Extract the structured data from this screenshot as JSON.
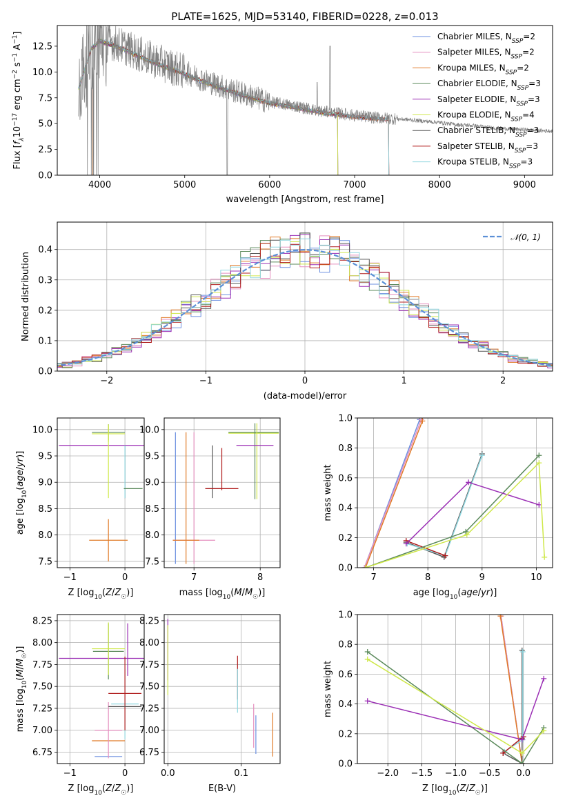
{
  "colors": {
    "Chabrier MILES": "#6b8fe0",
    "Salpeter MILES": "#e58fbf",
    "Kroupa MILES": "#e07b28",
    "Chabrier ELODIE": "#5b8a5b",
    "Salpeter ELODIE": "#9b2fb5",
    "Kroupa ELODIE": "#cfe84a",
    "Chabrier STELIB": "#555555",
    "Salpeter STELIB": "#b01c1c",
    "Kroupa STELIB": "#8fd6df",
    "data": "#808080",
    "normal": "#5b8fd6"
  },
  "chart_data": [
    {
      "type": "line",
      "title": "PLATE=1625, MJD=53140, FIBERID=0228, z=0.013",
      "xlabel": "wavelength [Angstrom, rest frame]",
      "ylabel": "Flux [f_λ10^-17 erg cm^-2 s^-1 A^-1]",
      "xlim": [
        3500,
        9330
      ],
      "ylim": [
        0,
        14.5
      ],
      "xticks": [
        "4000",
        "5000",
        "6000",
        "7000",
        "8000",
        "9000"
      ],
      "yticks": [
        "0.0",
        "2.5",
        "5.0",
        "7.5",
        "10.0",
        "12.5"
      ],
      "legend_position": "top-right",
      "legend": [
        {
          "name": "Chabrier MILES",
          "nssp": "2"
        },
        {
          "name": "Salpeter MILES",
          "nssp": "2"
        },
        {
          "name": "Kroupa MILES",
          "nssp": "2"
        },
        {
          "name": "Chabrier ELODIE",
          "nssp": "3"
        },
        {
          "name": "Salpeter ELODIE",
          "nssp": "3"
        },
        {
          "name": "Kroupa ELODIE",
          "nssp": "4"
        },
        {
          "name": "Chabrier STELIB",
          "nssp": "3"
        },
        {
          "name": "Salpeter STELIB",
          "nssp": "3"
        },
        {
          "name": "Kroupa STELIB",
          "nssp": "3"
        }
      ],
      "data_envelope": {
        "x": [
          3750,
          3900,
          4000,
          4100,
          4200,
          4300,
          4500,
          4800,
          5000,
          5200,
          5500,
          5800,
          6000,
          6300,
          6600,
          6800,
          7000,
          7200,
          7400,
          7600,
          7800,
          8000,
          8200,
          8400,
          8600,
          8800,
          9000,
          9200
        ],
        "y": [
          8.5,
          12.5,
          13.3,
          13.0,
          12.7,
          12.4,
          11.6,
          10.6,
          10.0,
          9.3,
          8.4,
          7.6,
          7.1,
          6.7,
          6.2,
          6.0,
          5.8,
          5.6,
          5.5,
          5.4,
          5.25,
          5.1,
          4.9,
          4.8,
          4.6,
          4.5,
          4.4,
          4.3
        ]
      },
      "models": {
        "MILES_end": 7400,
        "ELODIE_end": 6800,
        "STELIB_end": 7400,
        "start": 3750,
        "MILES_start": 3920
      }
    },
    {
      "type": "line",
      "xlabel": "(data-model)/error",
      "ylabel": "Normed distribution",
      "xlim": [
        -2.5,
        2.5
      ],
      "ylim": [
        0,
        0.49
      ],
      "xticks": [
        "−2",
        "−1",
        "0",
        "1",
        "2"
      ],
      "yticks": [
        "0.0",
        "0.1",
        "0.2",
        "0.3",
        "0.4"
      ],
      "grid": true,
      "legend_position": "top-right",
      "normal_label": "𝒩(0, 1)",
      "bin_width": 0.1
    },
    {
      "type": "scatter",
      "xlabel": "Z [log10(Z/Z☉)]",
      "ylabel": "age  [log10(age/yr)]",
      "xlim": [
        -1.23,
        0.35
      ],
      "ylim": [
        7.38,
        10.22
      ],
      "xticks": [
        "−1",
        "0"
      ],
      "yticks": [
        "7.5",
        "8.0",
        "8.5",
        "9.0",
        "9.5",
        "10.0"
      ],
      "grid": true,
      "points": [
        {
          "model": "Salpeter ELODIE",
          "x": -0.35,
          "y": 9.7,
          "xerr": 0.85,
          "yerr": 0.0
        },
        {
          "model": "Chabrier ELODIE",
          "x": -0.3,
          "y": 9.95,
          "xerr": 0.3,
          "yerr": 0.15
        },
        {
          "model": "Kroupa ELODIE",
          "x": -0.3,
          "y": 9.92,
          "xerr": 0.3,
          "yerr": 0.15
        },
        {
          "model": "Kroupa ELODIE",
          "x": -0.3,
          "y": 9.4,
          "xerr": 0.0,
          "yerr": 0.7
        },
        {
          "model": "Kroupa MILES",
          "x": -0.3,
          "y": 7.9,
          "xerr": 0.35,
          "yerr": 0.4
        },
        {
          "model": "Chabrier STELIB",
          "x": 0.0,
          "y": 9.2,
          "xerr": 0.0,
          "yerr": 0.5
        },
        {
          "model": "Kroupa STELIB",
          "x": 0.0,
          "y": 9.2,
          "xerr": 0.0,
          "yerr": 0.5
        },
        {
          "model": "Chabrier ELODIE",
          "x": 0.15,
          "y": 8.88,
          "xerr": 0.17,
          "yerr": 0.0
        }
      ]
    },
    {
      "type": "scatter",
      "xlabel": "mass [log10(M/M☉)]",
      "xlim": [
        6.55,
        8.3
      ],
      "ylim": [
        7.38,
        10.22
      ],
      "xticks": [
        "7",
        "8"
      ],
      "yticks": [
        "7.5",
        "8.0",
        "8.5",
        "9.0",
        "9.5",
        "10.0"
      ],
      "grid": true,
      "points": [
        {
          "model": "Chabrier MILES",
          "x": 6.72,
          "y": 8.7,
          "xerr": 0.0,
          "yerr": 1.25
        },
        {
          "model": "Kroupa MILES",
          "x": 6.88,
          "y": 8.7,
          "xerr": 0.0,
          "yerr": 1.25
        },
        {
          "model": "Salpeter MILES",
          "x": 7.0,
          "y": 8.7,
          "xerr": 0.0,
          "yerr": 1.25
        },
        {
          "model": "Salpeter MILES",
          "x": 7.0,
          "y": 7.9,
          "xerr": 0.32,
          "yerr": 0.0
        },
        {
          "model": "Kroupa MILES",
          "x": 6.88,
          "y": 7.9,
          "xerr": 0.2,
          "yerr": 0.0
        },
        {
          "model": "Chabrier STELIB",
          "x": 7.28,
          "y": 9.2,
          "xerr": 0.0,
          "yerr": 0.5
        },
        {
          "model": "Kroupa STELIB",
          "x": 7.3,
          "y": 8.88,
          "xerr": 0.1,
          "yerr": 0.0
        },
        {
          "model": "Salpeter STELIB",
          "x": 7.42,
          "y": 8.88,
          "xerr": 0.25,
          "yerr": 0.0
        },
        {
          "model": "Salpeter STELIB",
          "x": 7.42,
          "y": 9.25,
          "xerr": 0.0,
          "yerr": 0.4
        },
        {
          "model": "Chabrier ELODIE",
          "x": 7.9,
          "y": 9.95,
          "xerr": 0.38,
          "yerr": 0.0
        },
        {
          "model": "Kroupa ELODIE",
          "x": 7.9,
          "y": 9.93,
          "xerr": 0.38,
          "yerr": 0.0
        },
        {
          "model": "Kroupa ELODIE",
          "x": 7.95,
          "y": 9.4,
          "xerr": 0.0,
          "yerr": 0.72
        },
        {
          "model": "Chabrier ELODIE",
          "x": 7.92,
          "y": 9.4,
          "xerr": 0.0,
          "yerr": 0.72
        },
        {
          "model": "Salpeter ELODIE",
          "x": 7.92,
          "y": 9.7,
          "xerr": 0.28,
          "yerr": 0.0
        }
      ]
    },
    {
      "type": "line",
      "xlabel": "age  [log10(age/yr)]",
      "ylabel": "mass weight",
      "xlim": [
        6.7,
        10.3
      ],
      "ylim": [
        0,
        1
      ],
      "xticks": [
        "7",
        "8",
        "9",
        "10"
      ],
      "yticks": [
        "0.0",
        "0.2",
        "0.4",
        "0.6",
        "0.8",
        "1.0"
      ],
      "grid": true,
      "series": [
        {
          "name": "Chabrier MILES",
          "x": [
            6.83,
            7.85
          ],
          "y": [
            0.0,
            0.99
          ]
        },
        {
          "name": "Salpeter MILES",
          "x": [
            6.83,
            7.88
          ],
          "y": [
            0.0,
            0.99
          ]
        },
        {
          "name": "Kroupa MILES",
          "x": [
            6.85,
            7.9
          ],
          "y": [
            0.0,
            0.98
          ]
        },
        {
          "name": "Chabrier STELIB",
          "x": [
            7.6,
            8.3,
            9.0
          ],
          "y": [
            0.17,
            0.07,
            0.76
          ]
        },
        {
          "name": "Kroupa STELIB",
          "x": [
            7.62,
            8.32,
            9.0
          ],
          "y": [
            0.16,
            0.08,
            0.75
          ]
        },
        {
          "name": "Salpeter STELIB",
          "x": [
            7.6,
            8.32
          ],
          "y": [
            0.18,
            0.08
          ]
        },
        {
          "name": "Chabrier ELODIE",
          "x": [
            6.85,
            8.7,
            10.05
          ],
          "y": [
            0.0,
            0.24,
            0.75
          ]
        },
        {
          "name": "Salpeter ELODIE",
          "x": [
            7.6,
            8.75,
            10.05
          ],
          "y": [
            0.16,
            0.57,
            0.42
          ]
        },
        {
          "name": "Kroupa ELODIE",
          "x": [
            6.85,
            8.72,
            10.05,
            10.15
          ],
          "y": [
            0.0,
            0.22,
            0.7,
            0.07
          ]
        }
      ]
    },
    {
      "type": "scatter",
      "xlabel": "Z [log10(Z/Z☉)]",
      "ylabel": "mass [log10(M/M☉)]",
      "xlim": [
        -1.23,
        0.35
      ],
      "ylim": [
        6.62,
        8.32
      ],
      "xticks": [
        "−1",
        "0"
      ],
      "yticks": [
        "6.75",
        "7.00",
        "7.25",
        "7.50",
        "7.75",
        "8.00",
        "8.25"
      ],
      "grid": true,
      "points": [
        {
          "model": "Salpeter ELODIE",
          "x": -0.35,
          "y": 7.82,
          "xerr": 0.85,
          "yerr": 0.0
        },
        {
          "model": "Chabrier ELODIE",
          "x": -0.3,
          "y": 7.9,
          "xerr": 0.28,
          "yerr": 0.32
        },
        {
          "model": "Kroupa ELODIE",
          "x": -0.3,
          "y": 7.93,
          "xerr": 0.3,
          "yerr": 0.3
        },
        {
          "model": "Chabrier MILES",
          "x": -0.3,
          "y": 6.7,
          "xerr": 0.25,
          "yerr": 0.0
        },
        {
          "model": "Kroupa MILES",
          "x": -0.3,
          "y": 6.88,
          "xerr": 0.3,
          "yerr": 0.0
        },
        {
          "model": "Salpeter MILES",
          "x": -0.3,
          "y": 7.0,
          "xerr": 0.25,
          "yerr": 0.32
        },
        {
          "model": "Kroupa STELIB",
          "x": 0.0,
          "y": 7.3,
          "xerr": 0.25,
          "yerr": 0.4
        },
        {
          "model": "Salpeter STELIB",
          "x": 0.0,
          "y": 7.42,
          "xerr": 0.3,
          "yerr": 0.42
        },
        {
          "model": "Chabrier STELIB",
          "x": 0.0,
          "y": 7.27,
          "xerr": 0.3,
          "yerr": 0.0
        },
        {
          "model": "Salpeter ELODIE",
          "x": 0.05,
          "y": 7.92,
          "xerr": 0.0,
          "yerr": 0.3
        }
      ]
    },
    {
      "type": "scatter",
      "xlabel": "E(B-V)",
      "xlim": [
        -0.005,
        0.153
      ],
      "ylim": [
        6.62,
        8.32
      ],
      "xticks": [
        "0.0",
        "0.1"
      ],
      "yticks": [
        "6.75",
        "7.00",
        "7.25",
        "7.50",
        "7.75",
        "8.00",
        "8.25"
      ],
      "grid": true,
      "points": [
        {
          "model": "Salpeter ELODIE",
          "x": 0.0,
          "y": 7.92,
          "xerr": 0.0,
          "yerr": 0.35
        },
        {
          "model": "Kroupa ELODIE",
          "x": 0.0,
          "y": 7.8,
          "xerr": 0.0,
          "yerr": 0.4
        },
        {
          "model": "Salpeter STELIB",
          "x": 0.095,
          "y": 7.6,
          "xerr": 0.0,
          "yerr": 0.25
        },
        {
          "model": "Kroupa STELIB",
          "x": 0.095,
          "y": 7.45,
          "xerr": 0.0,
          "yerr": 0.25
        },
        {
          "model": "Salpeter MILES",
          "x": 0.117,
          "y": 7.05,
          "xerr": 0.0,
          "yerr": 0.25
        },
        {
          "model": "Chabrier MILES",
          "x": 0.12,
          "y": 6.95,
          "xerr": 0.0,
          "yerr": 0.22
        },
        {
          "model": "Kroupa MILES",
          "x": 0.143,
          "y": 6.95,
          "xerr": 0.0,
          "yerr": 0.25
        }
      ]
    },
    {
      "type": "line",
      "xlabel": "Z [log10(Z/Z☉)]",
      "ylabel": "mass weight",
      "xlim": [
        -2.45,
        0.43
      ],
      "ylim": [
        0,
        1
      ],
      "xticks": [
        "−2.0",
        "−1.5",
        "−1.0",
        "−0.5",
        "0.0"
      ],
      "yticks": [
        "0.0",
        "0.2",
        "0.4",
        "0.6",
        "0.8",
        "1.0"
      ],
      "grid": true,
      "series": [
        {
          "name": "Chabrier MILES",
          "x": [
            -0.33,
            -0.02
          ],
          "y": [
            0.99,
            0.0
          ]
        },
        {
          "name": "Salpeter MILES",
          "x": [
            -0.33,
            -0.02
          ],
          "y": [
            0.99,
            0.0
          ]
        },
        {
          "name": "Kroupa MILES",
          "x": [
            -0.34,
            -0.02
          ],
          "y": [
            0.99,
            0.0
          ]
        },
        {
          "name": "Chabrier STELIB",
          "x": [
            -0.02,
            -0.02,
            -0.02,
            -0.3
          ],
          "y": [
            0.76,
            0.17,
            0.0,
            0.07
          ]
        },
        {
          "name": "Kroupa STELIB",
          "x": [
            -0.01,
            -0.01,
            -0.28
          ],
          "y": [
            0.75,
            0.16,
            0.08
          ]
        },
        {
          "name": "Salpeter STELIB",
          "x": [
            0.0,
            -0.3
          ],
          "y": [
            0.18,
            0.07
          ]
        },
        {
          "name": "Chabrier ELODIE",
          "x": [
            -2.3,
            -0.02,
            0.3
          ],
          "y": [
            0.75,
            0.0,
            0.24
          ]
        },
        {
          "name": "Salpeter ELODIE",
          "x": [
            -2.3,
            -0.02,
            0.3
          ],
          "y": [
            0.42,
            0.16,
            0.57
          ]
        },
        {
          "name": "Kroupa ELODIE",
          "x": [
            -2.3,
            -0.02,
            0.3
          ],
          "y": [
            0.7,
            0.07,
            0.22
          ]
        }
      ]
    }
  ]
}
